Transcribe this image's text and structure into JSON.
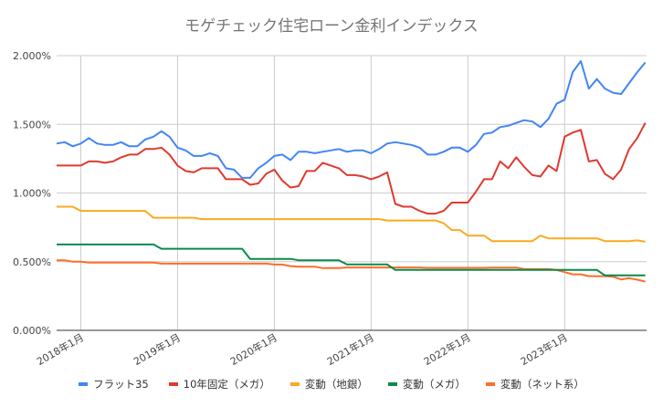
{
  "chart_data": {
    "type": "line",
    "title": "モゲチェック住宅ローン金利インデックス",
    "xlabel": "",
    "ylabel": "",
    "x_start": "2017-10",
    "x_frequency": "monthly",
    "x_tick_labels": [
      "2018年1月",
      "2019年1月",
      "2020年1月",
      "2021年1月",
      "2022年1月",
      "2023年1月"
    ],
    "x_tick_offsets": [
      3,
      15,
      27,
      39,
      51,
      63
    ],
    "y_tick_labels": [
      "0.000%",
      "0.500%",
      "1.000%",
      "1.500%",
      "2.000%"
    ],
    "y_ticks": [
      0,
      0.5,
      1.0,
      1.5,
      2.0
    ],
    "ylim": [
      0,
      2.0
    ],
    "grid": true,
    "legend_position": "bottom",
    "series": [
      {
        "name": "フラット35",
        "color": "#4285f4",
        "values": [
          1.36,
          1.37,
          1.34,
          1.36,
          1.4,
          1.36,
          1.35,
          1.35,
          1.37,
          1.34,
          1.34,
          1.39,
          1.41,
          1.45,
          1.41,
          1.33,
          1.31,
          1.27,
          1.27,
          1.29,
          1.27,
          1.18,
          1.17,
          1.11,
          1.11,
          1.18,
          1.22,
          1.27,
          1.28,
          1.24,
          1.3,
          1.3,
          1.29,
          1.3,
          1.31,
          1.32,
          1.3,
          1.31,
          1.31,
          1.29,
          1.32,
          1.36,
          1.37,
          1.36,
          1.35,
          1.33,
          1.28,
          1.28,
          1.3,
          1.33,
          1.33,
          1.3,
          1.35,
          1.43,
          1.44,
          1.48,
          1.49,
          1.51,
          1.53,
          1.52,
          1.48,
          1.54,
          1.65,
          1.68,
          1.88,
          1.96,
          1.76,
          1.83,
          1.76,
          1.73,
          1.72,
          1.8,
          1.88,
          1.95
        ]
      },
      {
        "name": "10年固定（メガ）",
        "color": "#e0392f",
        "values": [
          1.2,
          1.2,
          1.2,
          1.2,
          1.23,
          1.23,
          1.22,
          1.23,
          1.26,
          1.28,
          1.28,
          1.32,
          1.32,
          1.33,
          1.28,
          1.2,
          1.16,
          1.15,
          1.18,
          1.18,
          1.18,
          1.1,
          1.1,
          1.1,
          1.06,
          1.07,
          1.14,
          1.17,
          1.09,
          1.04,
          1.05,
          1.16,
          1.16,
          1.22,
          1.2,
          1.18,
          1.13,
          1.13,
          1.12,
          1.1,
          1.12,
          1.15,
          0.92,
          0.9,
          0.9,
          0.87,
          0.85,
          0.85,
          0.87,
          0.93,
          0.93,
          0.93,
          1.01,
          1.1,
          1.1,
          1.23,
          1.18,
          1.26,
          1.19,
          1.13,
          1.12,
          1.2,
          1.16,
          1.41,
          1.44,
          1.46,
          1.23,
          1.24,
          1.14,
          1.1,
          1.17,
          1.32,
          1.4,
          1.51
        ]
      },
      {
        "name": "変動（地銀）",
        "color": "#fbaa1f",
        "values": [
          0.9,
          0.9,
          0.9,
          0.87,
          0.87,
          0.87,
          0.87,
          0.87,
          0.87,
          0.87,
          0.87,
          0.87,
          0.82,
          0.82,
          0.82,
          0.82,
          0.82,
          0.82,
          0.81,
          0.81,
          0.81,
          0.81,
          0.81,
          0.81,
          0.81,
          0.81,
          0.81,
          0.81,
          0.81,
          0.81,
          0.81,
          0.81,
          0.81,
          0.81,
          0.81,
          0.81,
          0.81,
          0.81,
          0.81,
          0.81,
          0.81,
          0.8,
          0.8,
          0.8,
          0.8,
          0.8,
          0.8,
          0.8,
          0.78,
          0.73,
          0.73,
          0.69,
          0.69,
          0.69,
          0.65,
          0.65,
          0.65,
          0.65,
          0.65,
          0.65,
          0.69,
          0.67,
          0.67,
          0.67,
          0.67,
          0.67,
          0.67,
          0.67,
          0.65,
          0.65,
          0.65,
          0.65,
          0.655,
          0.645
        ]
      },
      {
        "name": "変動（メガ）",
        "color": "#0b8a4c",
        "values": [
          0.625,
          0.625,
          0.625,
          0.625,
          0.625,
          0.625,
          0.625,
          0.625,
          0.625,
          0.625,
          0.625,
          0.625,
          0.625,
          0.594,
          0.594,
          0.594,
          0.594,
          0.594,
          0.594,
          0.594,
          0.594,
          0.594,
          0.594,
          0.594,
          0.52,
          0.52,
          0.52,
          0.52,
          0.52,
          0.52,
          0.51,
          0.51,
          0.51,
          0.51,
          0.51,
          0.51,
          0.48,
          0.48,
          0.48,
          0.48,
          0.48,
          0.48,
          0.44,
          0.44,
          0.44,
          0.44,
          0.44,
          0.44,
          0.44,
          0.44,
          0.44,
          0.44,
          0.44,
          0.44,
          0.44,
          0.44,
          0.44,
          0.44,
          0.44,
          0.44,
          0.44,
          0.44,
          0.44,
          0.44,
          0.44,
          0.44,
          0.44,
          0.44,
          0.4,
          0.4,
          0.4,
          0.4,
          0.4,
          0.4
        ]
      },
      {
        "name": "変動（ネット系）",
        "color": "#ff6d2a",
        "values": [
          0.51,
          0.51,
          0.5,
          0.5,
          0.494,
          0.494,
          0.494,
          0.494,
          0.494,
          0.494,
          0.494,
          0.494,
          0.494,
          0.486,
          0.486,
          0.486,
          0.486,
          0.486,
          0.486,
          0.486,
          0.486,
          0.486,
          0.486,
          0.486,
          0.486,
          0.486,
          0.486,
          0.479,
          0.479,
          0.468,
          0.464,
          0.464,
          0.464,
          0.453,
          0.453,
          0.453,
          0.458,
          0.458,
          0.458,
          0.458,
          0.458,
          0.458,
          0.458,
          0.458,
          0.458,
          0.458,
          0.455,
          0.455,
          0.455,
          0.455,
          0.455,
          0.455,
          0.455,
          0.455,
          0.457,
          0.457,
          0.457,
          0.457,
          0.446,
          0.446,
          0.446,
          0.446,
          0.439,
          0.424,
          0.408,
          0.408,
          0.395,
          0.395,
          0.395,
          0.391,
          0.371,
          0.38,
          0.369,
          0.355
        ]
      }
    ]
  }
}
